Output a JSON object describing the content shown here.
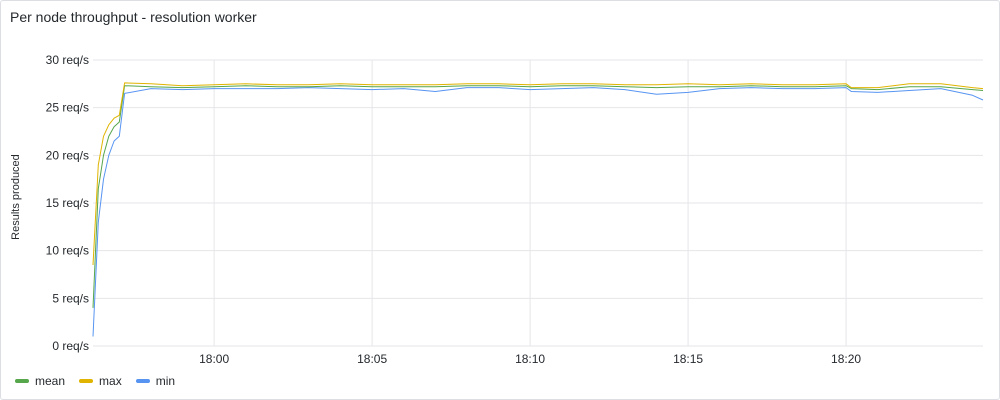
{
  "panel": {
    "title": "Per node throughput - resolution worker"
  },
  "chart_data": {
    "type": "line",
    "title": "Per node throughput - resolution worker",
    "ylabel": "Results produced",
    "xlabel": "",
    "ylim": [
      0,
      30
    ],
    "xlim": [
      "17:56:10",
      "18:24:20"
    ],
    "y_ticks": [
      "0 req/s",
      "5 req/s",
      "10 req/s",
      "15 req/s",
      "20 req/s",
      "25 req/s",
      "30 req/s"
    ],
    "x_ticks": [
      "18:00",
      "18:05",
      "18:10",
      "18:15",
      "18:20"
    ],
    "grid": true,
    "legend_position": "bottom-left",
    "series": [
      {
        "name": "mean",
        "color": "#56a64b",
        "points": [
          [
            "17:56:10",
            4.0
          ],
          [
            "17:56:20",
            16.5
          ],
          [
            "17:56:30",
            20.0
          ],
          [
            "17:56:40",
            22.0
          ],
          [
            "17:56:50",
            23.0
          ],
          [
            "17:57:00",
            23.5
          ],
          [
            "17:57:10",
            27.3
          ],
          [
            "17:58:00",
            27.2
          ],
          [
            "17:59:00",
            27.1
          ],
          [
            "18:00:00",
            27.2
          ],
          [
            "18:01:00",
            27.3
          ],
          [
            "18:02:00",
            27.2
          ],
          [
            "18:03:00",
            27.2
          ],
          [
            "18:04:00",
            27.3
          ],
          [
            "18:05:00",
            27.2
          ],
          [
            "18:06:00",
            27.2
          ],
          [
            "18:07:00",
            27.2
          ],
          [
            "18:08:00",
            27.3
          ],
          [
            "18:09:00",
            27.3
          ],
          [
            "18:10:00",
            27.2
          ],
          [
            "18:11:00",
            27.3
          ],
          [
            "18:12:00",
            27.3
          ],
          [
            "18:13:00",
            27.2
          ],
          [
            "18:14:00",
            27.1
          ],
          [
            "18:15:00",
            27.2
          ],
          [
            "18:16:00",
            27.2
          ],
          [
            "18:17:00",
            27.3
          ],
          [
            "18:18:00",
            27.2
          ],
          [
            "18:19:00",
            27.2
          ],
          [
            "18:20:00",
            27.3
          ],
          [
            "18:20:10",
            27.0
          ],
          [
            "18:21:00",
            26.9
          ],
          [
            "18:22:00",
            27.2
          ],
          [
            "18:23:00",
            27.2
          ],
          [
            "18:24:00",
            26.9
          ],
          [
            "18:24:20",
            26.8
          ]
        ]
      },
      {
        "name": "max",
        "color": "#e0b400",
        "points": [
          [
            "17:56:10",
            8.5
          ],
          [
            "17:56:20",
            19.0
          ],
          [
            "17:56:30",
            22.0
          ],
          [
            "17:56:40",
            23.2
          ],
          [
            "17:56:50",
            23.9
          ],
          [
            "17:57:00",
            24.2
          ],
          [
            "17:57:10",
            27.6
          ],
          [
            "17:58:00",
            27.5
          ],
          [
            "17:59:00",
            27.3
          ],
          [
            "18:00:00",
            27.4
          ],
          [
            "18:01:00",
            27.5
          ],
          [
            "18:02:00",
            27.4
          ],
          [
            "18:03:00",
            27.4
          ],
          [
            "18:04:00",
            27.5
          ],
          [
            "18:05:00",
            27.4
          ],
          [
            "18:06:00",
            27.4
          ],
          [
            "18:07:00",
            27.4
          ],
          [
            "18:08:00",
            27.5
          ],
          [
            "18:09:00",
            27.5
          ],
          [
            "18:10:00",
            27.4
          ],
          [
            "18:11:00",
            27.5
          ],
          [
            "18:12:00",
            27.5
          ],
          [
            "18:13:00",
            27.4
          ],
          [
            "18:14:00",
            27.4
          ],
          [
            "18:15:00",
            27.5
          ],
          [
            "18:16:00",
            27.4
          ],
          [
            "18:17:00",
            27.5
          ],
          [
            "18:18:00",
            27.4
          ],
          [
            "18:19:00",
            27.4
          ],
          [
            "18:20:00",
            27.5
          ],
          [
            "18:20:10",
            27.1
          ],
          [
            "18:21:00",
            27.1
          ],
          [
            "18:22:00",
            27.5
          ],
          [
            "18:23:00",
            27.5
          ],
          [
            "18:24:00",
            27.1
          ],
          [
            "18:24:20",
            27.0
          ]
        ]
      },
      {
        "name": "min",
        "color": "#5794f2",
        "points": [
          [
            "17:56:10",
            1.0
          ],
          [
            "17:56:20",
            13.0
          ],
          [
            "17:56:30",
            17.5
          ],
          [
            "17:56:40",
            20.0
          ],
          [
            "17:56:50",
            21.5
          ],
          [
            "17:57:00",
            22.0
          ],
          [
            "17:57:10",
            26.5
          ],
          [
            "17:58:00",
            27.0
          ],
          [
            "17:59:00",
            26.9
          ],
          [
            "18:00:00",
            27.0
          ],
          [
            "18:01:00",
            27.0
          ],
          [
            "18:02:00",
            27.0
          ],
          [
            "18:03:00",
            27.1
          ],
          [
            "18:04:00",
            27.0
          ],
          [
            "18:05:00",
            26.9
          ],
          [
            "18:06:00",
            27.0
          ],
          [
            "18:07:00",
            26.7
          ],
          [
            "18:08:00",
            27.1
          ],
          [
            "18:09:00",
            27.1
          ],
          [
            "18:10:00",
            26.9
          ],
          [
            "18:11:00",
            27.0
          ],
          [
            "18:12:00",
            27.1
          ],
          [
            "18:13:00",
            26.9
          ],
          [
            "18:14:00",
            26.4
          ],
          [
            "18:15:00",
            26.6
          ],
          [
            "18:16:00",
            27.0
          ],
          [
            "18:17:00",
            27.1
          ],
          [
            "18:18:00",
            27.0
          ],
          [
            "18:19:00",
            27.0
          ],
          [
            "18:20:00",
            27.1
          ],
          [
            "18:20:10",
            26.7
          ],
          [
            "18:21:00",
            26.6
          ],
          [
            "18:22:00",
            26.8
          ],
          [
            "18:23:00",
            27.0
          ],
          [
            "18:24:00",
            26.3
          ],
          [
            "18:24:20",
            25.8
          ]
        ]
      }
    ]
  }
}
